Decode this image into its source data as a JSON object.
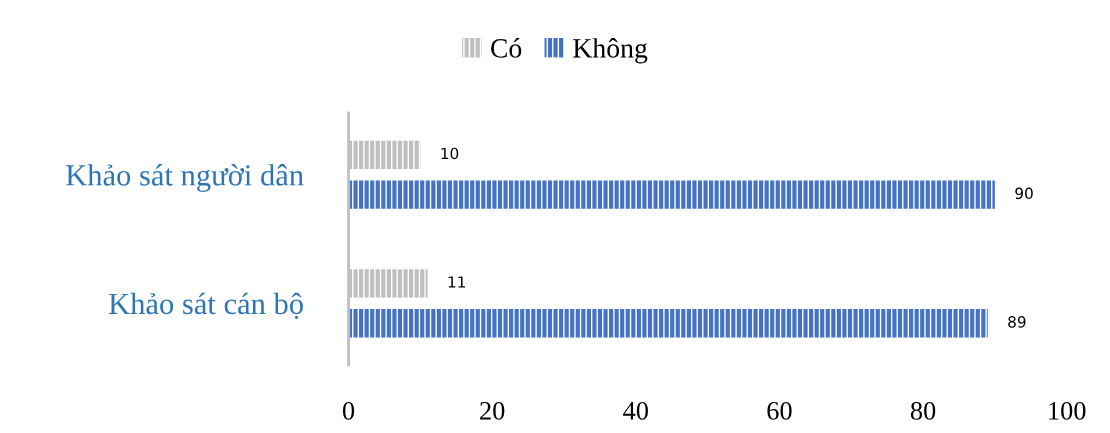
{
  "chart_data": {
    "type": "bar",
    "orientation": "horizontal",
    "categories": [
      "Khảo sát người dân",
      "Khảo sát cán bộ"
    ],
    "series": [
      {
        "name": "Có",
        "color": "#bfbfbf",
        "values": [
          10,
          11
        ]
      },
      {
        "name": "Không",
        "color": "#4472c4",
        "values": [
          90,
          89
        ]
      }
    ],
    "xlim": [
      0,
      100
    ],
    "xticks": [
      0,
      20,
      40,
      60,
      80,
      100
    ],
    "data_labels": true,
    "legend": "top",
    "grid": false
  }
}
